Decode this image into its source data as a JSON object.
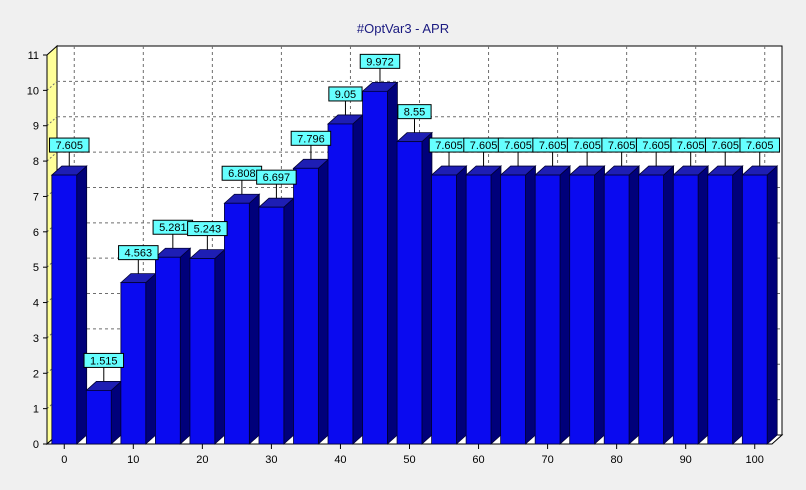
{
  "chart_data": {
    "type": "bar",
    "title": "#OptVar3 - APR",
    "xlabel": "",
    "ylabel": "",
    "x": [
      0,
      5,
      10,
      15,
      20,
      25,
      30,
      35,
      40,
      45,
      50,
      55,
      60,
      65,
      70,
      75,
      80,
      85,
      90,
      95,
      100
    ],
    "values": [
      7.605,
      1.515,
      4.563,
      5.281,
      5.243,
      6.808,
      6.697,
      7.796,
      9.05,
      9.972,
      8.55,
      7.605,
      7.605,
      7.605,
      7.605,
      7.605,
      7.605,
      7.605,
      7.605,
      7.605,
      7.605
    ],
    "data_labels": [
      "7.605",
      "1.515",
      "4.563",
      "5.281",
      "5.243",
      "6.808",
      "6.697",
      "7.796",
      "9.05",
      "9.972",
      "8.55",
      "7.605",
      "7.605",
      "7.605",
      "7.605",
      "7.605",
      "7.605",
      "7.605",
      "7.605",
      "7.605",
      "7.605"
    ],
    "xticks": [
      0,
      10,
      20,
      30,
      40,
      50,
      60,
      70,
      80,
      90,
      100
    ],
    "yticks": [
      0,
      1,
      2,
      3,
      4,
      5,
      6,
      7,
      8,
      9,
      10,
      11
    ],
    "ylim": [
      0,
      11
    ],
    "xlim": [
      -2.5,
      102.5
    ],
    "grid": true,
    "legend": "none",
    "style": "3d",
    "colors": {
      "bar_front": "#0a0af0",
      "bar_side": "#00007a",
      "bar_top": "#1e1eb4",
      "bar_outline": "#000033",
      "label_fill": "#66ffff",
      "wall_left": "#ffff99",
      "wall_floor": "#ffffff",
      "grid": "#6e6e6e",
      "title": "#1a1a80",
      "background": "#f0f0f0"
    }
  }
}
